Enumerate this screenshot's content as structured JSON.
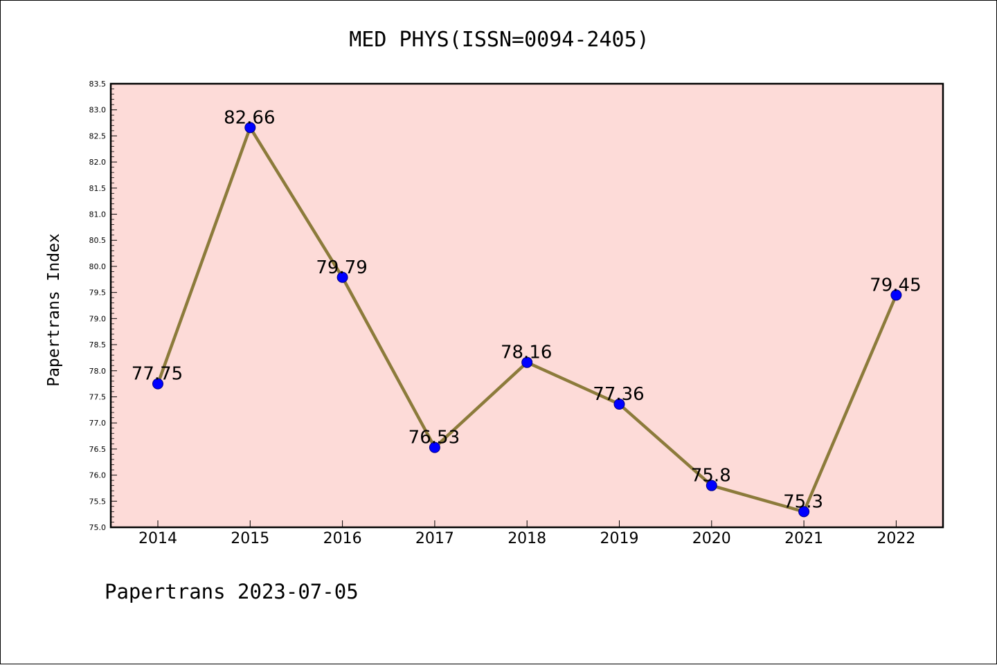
{
  "chart_data": {
    "type": "line",
    "title": "MED PHYS(ISSN=0094-2405)",
    "xlabel": "",
    "ylabel": "Papertrans Index",
    "categories": [
      "2014",
      "2015",
      "2016",
      "2017",
      "2018",
      "2019",
      "2020",
      "2021",
      "2022"
    ],
    "series": [
      {
        "values": [
          77.75,
          82.66,
          79.79,
          76.53,
          78.16,
          77.36,
          75.8,
          75.3,
          79.45
        ]
      }
    ],
    "data_labels": [
      "77.75",
      "82.66",
      "79.79",
      "76.53",
      "78.16",
      "77.36",
      "75.8",
      "75.3",
      "79.45"
    ],
    "ylim": [
      75.0,
      83.5
    ],
    "yticks": [
      "75.0",
      "75.5",
      "76.0",
      "76.5",
      "77.0",
      "77.5",
      "78.0",
      "78.5",
      "79.0",
      "79.5",
      "80.0",
      "80.5",
      "81.0",
      "81.5",
      "82.0",
      "82.5",
      "83.0",
      "83.5"
    ],
    "grid": false,
    "colors": {
      "plot_background": "#fddbd8",
      "line": "#8c7b3b",
      "marker": "#0000ff",
      "marker_edge": "#000080"
    }
  },
  "footer": "Papertrans 2023-07-05"
}
